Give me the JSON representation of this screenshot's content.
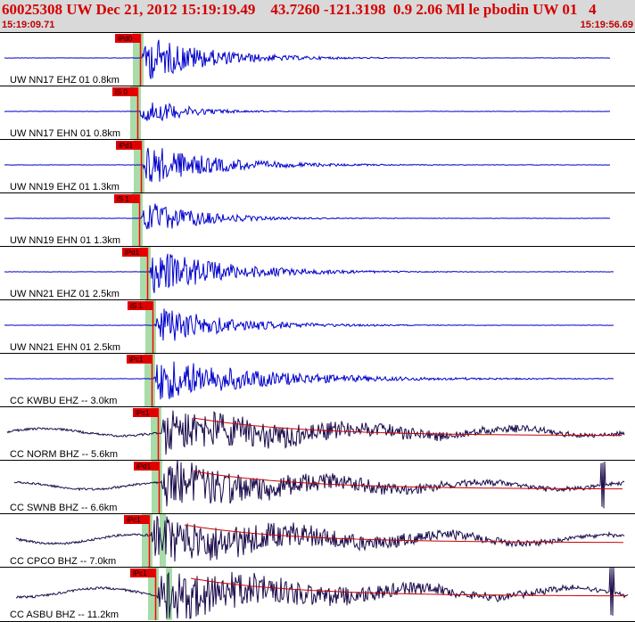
{
  "header": {
    "title": "60025308 UW Dec 21, 2012 15:19:19.49    43.7260 -121.3198  0.9 2.06 Ml le pbodin UW 01   4",
    "start_time": "15:19:09.71",
    "end_time": "15:19:56.69"
  },
  "colors": {
    "header_bg": "#d9d9d9",
    "title": "#d40000",
    "trace_short_period": "#0000cc",
    "trace_broadband": "#1a0a4a",
    "envelope": "#cc0000",
    "pick_line": "#ff0000",
    "pick_label_bg": "#e00000",
    "pick_window": "#a8dca8",
    "panel_border": "#000000"
  },
  "traces": [
    {
      "label": "UW NN17 EHZ 01 0.8km",
      "pick": "iPd0",
      "color": "short_period"
    },
    {
      "label": "UW NN17 EHN 01 0.8km",
      "pick": "iS 0",
      "color": "short_period"
    },
    {
      "label": "UW NN19 EHZ 01 1.3km",
      "pick": "iPd1",
      "color": "short_period"
    },
    {
      "label": "UW NN19 EHN 01 1.3km",
      "pick": "iS 1",
      "color": "short_period"
    },
    {
      "label": "UW NN21 EHZ 01 2.5km",
      "pick": "iPd1",
      "color": "short_period"
    },
    {
      "label": "UW NN21 EHN 01 2.5km",
      "pick": "iS 1",
      "color": "short_period"
    },
    {
      "label": "CC KWBU EHZ -- 3.0km",
      "pick": "iPc1",
      "color": "short_period"
    },
    {
      "label": "CC NORM BHZ -- 5.6km",
      "pick": "iPc1",
      "color": "broadband"
    },
    {
      "label": "CC SWNB BHZ -- 6.6km",
      "pick": "iPd1",
      "color": "broadband"
    },
    {
      "label": "CC CPCO BHZ -- 7.0km",
      "pick": "iPc1",
      "color": "broadband"
    },
    {
      "label": "CC ASBU BHZ -- 11.2km",
      "pick": "iPc1",
      "color": "broadband"
    }
  ]
}
